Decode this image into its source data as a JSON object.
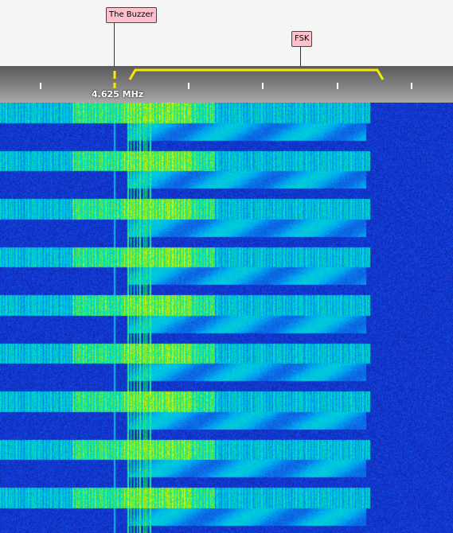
{
  "markers": [
    {
      "label": "The Buzzer",
      "name": "marker-the-buzzer"
    },
    {
      "label": "FSK",
      "name": "marker-fsk"
    }
  ],
  "scale": {
    "center_frequency_label": "4.625 MHz"
  },
  "colors": {
    "passband": "#f7e800",
    "marker_label_bg": "#ffc0cb",
    "waterfall_low": "#0a1fa0",
    "waterfall_mid": "#00d0ff",
    "waterfall_high": "#f0f000"
  }
}
